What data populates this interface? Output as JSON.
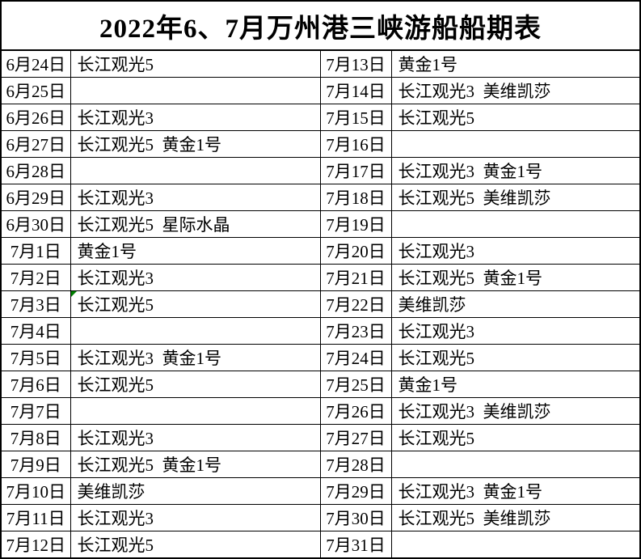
{
  "title": "2022年6、7月万州港三峡游船船期表",
  "colors": {
    "border": "#000000",
    "text": "#000000",
    "background": "#ffffff",
    "comment_marker": "#008000"
  },
  "table": {
    "rows": [
      {
        "left_date": "6月24日",
        "left_ships": "长江观光5",
        "right_date": "7月13日",
        "right_ships": "黄金1号"
      },
      {
        "left_date": "6月25日",
        "left_ships": "",
        "right_date": "7月14日",
        "right_ships": "长江观光3  美维凯莎"
      },
      {
        "left_date": "6月26日",
        "left_ships": "长江观光3",
        "right_date": "7月15日",
        "right_ships": "长江观光5"
      },
      {
        "left_date": "6月27日",
        "left_ships": "长江观光5  黄金1号",
        "right_date": "7月16日",
        "right_ships": ""
      },
      {
        "left_date": "6月28日",
        "left_ships": "",
        "right_date": "7月17日",
        "right_ships": "长江观光3  黄金1号"
      },
      {
        "left_date": "6月29日",
        "left_ships": "长江观光3",
        "right_date": "7月18日",
        "right_ships": "长江观光5  美维凯莎"
      },
      {
        "left_date": "6月30日",
        "left_ships": "长江观光5  星际水晶",
        "right_date": "7月19日",
        "right_ships": ""
      },
      {
        "left_date": "7月1日",
        "left_ships": "黄金1号",
        "right_date": "7月20日",
        "right_ships": "长江观光3"
      },
      {
        "left_date": "7月2日",
        "left_ships": "长江观光3",
        "right_date": "7月21日",
        "right_ships": "长江观光5  黄金1号"
      },
      {
        "left_date": "7月3日",
        "left_ships": "长江观光5",
        "right_date": "7月22日",
        "right_ships": "美维凯莎"
      },
      {
        "left_date": "7月4日",
        "left_ships": "",
        "right_date": "7月23日",
        "right_ships": "长江观光3"
      },
      {
        "left_date": "7月5日",
        "left_ships": "长江观光3  黄金1号",
        "right_date": "7月24日",
        "right_ships": "长江观光5"
      },
      {
        "left_date": "7月6日",
        "left_ships": "长江观光5",
        "right_date": "7月25日",
        "right_ships": "黄金1号"
      },
      {
        "left_date": "7月7日",
        "left_ships": "",
        "right_date": "7月26日",
        "right_ships": "长江观光3  美维凯莎"
      },
      {
        "left_date": "7月8日",
        "left_ships": "长江观光3",
        "right_date": "7月27日",
        "right_ships": "长江观光5"
      },
      {
        "left_date": "7月9日",
        "left_ships": "长江观光5  黄金1号",
        "right_date": "7月28日",
        "right_ships": ""
      },
      {
        "left_date": "7月10日",
        "left_ships": "美维凯莎",
        "right_date": "7月29日",
        "right_ships": "长江观光3  黄金1号"
      },
      {
        "left_date": "7月11日",
        "left_ships": "长江观光3",
        "right_date": "7月30日",
        "right_ships": "长江观光5  美维凯莎"
      },
      {
        "left_date": "7月12日",
        "left_ships": "长江观光5",
        "right_date": "7月31日",
        "right_ships": ""
      }
    ]
  },
  "annotations": {
    "comment_marker": {
      "row_index": 9,
      "column": "left_ships",
      "color": "#008000"
    }
  }
}
